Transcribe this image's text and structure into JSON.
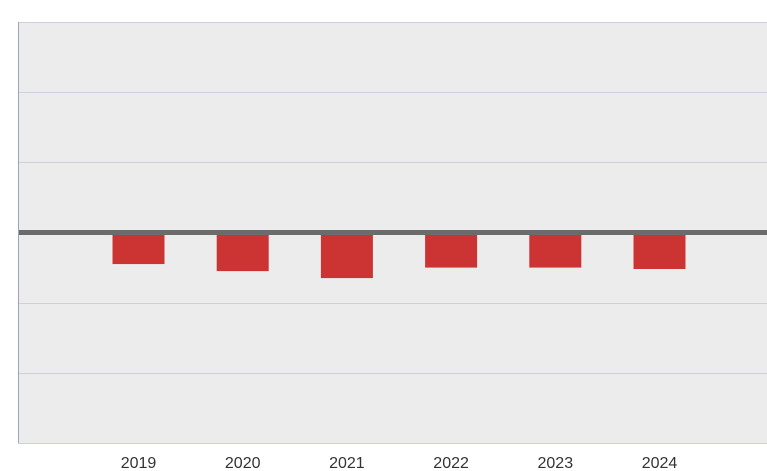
{
  "chart_data": {
    "type": "bar",
    "categories": [
      "2019",
      "2020",
      "2021",
      "2022",
      "2023",
      "2024"
    ],
    "values": [
      -0.45,
      -0.55,
      -0.65,
      -0.5,
      -0.5,
      -0.52
    ],
    "title": "",
    "xlabel": "",
    "ylabel": "",
    "ylim": [
      -3,
      3
    ],
    "grid": true,
    "legend": "none",
    "colors": {
      "bar": "#cc3333",
      "background": "#ececec",
      "grid": "#cfd0dd",
      "zero_line": "#6b6b6b",
      "axis": "#a0a3c0"
    }
  }
}
